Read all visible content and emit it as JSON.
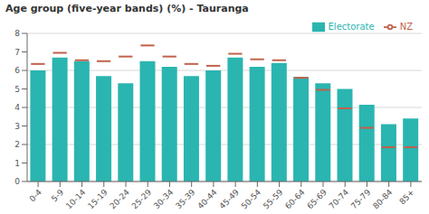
{
  "chart_data": {
    "type": "bar",
    "title": "Age group (five-year bands) (%) - Tauranga",
    "categories": [
      "0-4",
      "5-9",
      "10-14",
      "15-19",
      "20-24",
      "25-29",
      "30-34",
      "35-39",
      "40-44",
      "45-49",
      "50-54",
      "55-59",
      "60-64",
      "65-69",
      "70-74",
      "75-79",
      "80-84",
      "85+"
    ],
    "series": [
      {
        "name": "Electorate",
        "color": "#2ab5b0",
        "values": [
          6.0,
          6.7,
          6.5,
          5.7,
          5.3,
          6.5,
          6.2,
          5.7,
          6.0,
          6.7,
          6.2,
          6.4,
          5.65,
          5.3,
          5.0,
          4.15,
          3.1,
          3.4
        ]
      },
      {
        "name": "NZ",
        "color": "#c0614a",
        "marker": "hline",
        "values": [
          6.35,
          6.95,
          6.55,
          6.5,
          6.75,
          7.35,
          6.75,
          6.35,
          6.25,
          6.9,
          6.6,
          6.55,
          5.6,
          4.95,
          3.95,
          2.9,
          1.85,
          1.85
        ]
      }
    ],
    "ylim": [
      0,
      8.0
    ],
    "yticks": [
      0.0,
      1.0,
      2.0,
      3.0,
      4.0,
      5.0,
      6.0,
      7.0,
      8.0
    ],
    "grid": true,
    "legend": "upper right"
  }
}
